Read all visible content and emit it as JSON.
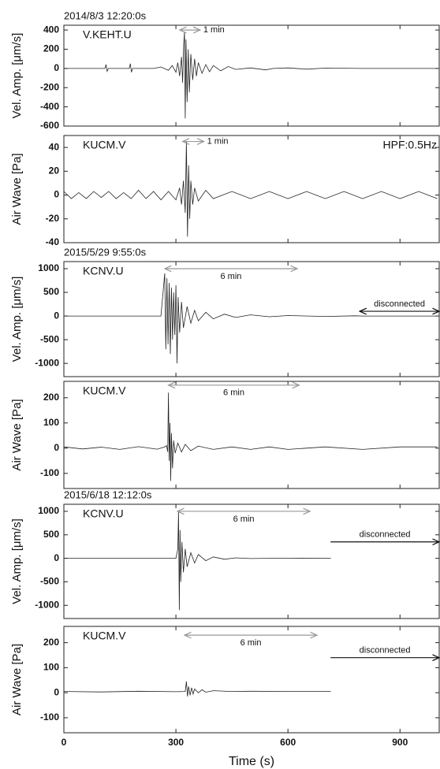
{
  "chart_data": [
    {
      "type": "line",
      "title": "2014/8/3 12:20:0s",
      "station": "V.KEHT.U",
      "ylabel": "Vel. Amp. [μm/s]",
      "xlim": [
        0,
        1005
      ],
      "xticks": [
        0,
        300,
        600,
        900
      ],
      "ylim": [
        -600,
        450
      ],
      "yticks": [
        -600,
        -400,
        -200,
        0,
        200,
        400
      ],
      "color": "#222222",
      "x": [
        0,
        110,
        113,
        116,
        119,
        175,
        178,
        181,
        184,
        240,
        260,
        280,
        290,
        300,
        305,
        310,
        315,
        318,
        321,
        323,
        325,
        327,
        330,
        333,
        336,
        340,
        345,
        350,
        355,
        360,
        370,
        380,
        390,
        400,
        420,
        440,
        460,
        500,
        540,
        560,
        600,
        650,
        700,
        800,
        900,
        1000
      ],
      "values": [
        0,
        0,
        40,
        -30,
        0,
        0,
        50,
        -40,
        0,
        0,
        15,
        -20,
        30,
        -40,
        60,
        -80,
        120,
        -150,
        250,
        380,
        -520,
        300,
        -350,
        200,
        -250,
        150,
        -120,
        100,
        -80,
        60,
        -50,
        40,
        -35,
        30,
        -25,
        20,
        -10,
        5,
        -15,
        0,
        5,
        -8,
        4,
        0,
        0,
        0
      ],
      "annotations": [
        {
          "text": "1 min",
          "x": [
            310,
            365
          ],
          "y": 400,
          "heads": "both",
          "label_pos": "right",
          "color": "#999999"
        }
      ]
    },
    {
      "type": "line",
      "station": "KUCM.V",
      "ylabel": "Air Wave [Pa]",
      "filter": "HPF:0.5Hz",
      "xlim": [
        0,
        1005
      ],
      "xticks": [
        0,
        300,
        600,
        900
      ],
      "ylim": [
        -40,
        50
      ],
      "yticks": [
        -40,
        -20,
        0,
        20,
        40
      ],
      "color": "#222222",
      "x": [
        0,
        20,
        40,
        60,
        80,
        100,
        120,
        140,
        160,
        180,
        200,
        220,
        240,
        260,
        280,
        300,
        310,
        315,
        320,
        325,
        328,
        331,
        334,
        337,
        340,
        345,
        350,
        360,
        380,
        400,
        450,
        500,
        550,
        600,
        650,
        700,
        750,
        800,
        850,
        900,
        950,
        1000
      ],
      "values": [
        3,
        -3,
        2,
        -3,
        3,
        -2,
        3,
        -3,
        2,
        -3,
        4,
        -3,
        3,
        -4,
        3,
        -4,
        6,
        -8,
        12,
        -15,
        45,
        -35,
        25,
        -20,
        12,
        -8,
        6,
        -5,
        4,
        -3,
        3,
        -3,
        3,
        -3,
        3,
        -3,
        3,
        -3,
        3,
        -3,
        3,
        -3
      ],
      "annotations": [
        {
          "text": "1 min",
          "x": [
            318,
            375
          ],
          "y": 45,
          "heads": "both",
          "label_pos": "right",
          "color": "#999999"
        }
      ]
    },
    {
      "type": "line",
      "title": "2015/5/29 9:55:0s",
      "station": "KCNV.U",
      "ylabel": "Vel. Amp. [μm/s]",
      "xlim": [
        0,
        1005
      ],
      "xticks": [
        0,
        300,
        600,
        900
      ],
      "ylim": [
        -1280,
        1150
      ],
      "yticks": [
        -1000,
        -500,
        0,
        500,
        1000
      ],
      "color": "#222222",
      "x": [
        0,
        260,
        270,
        273,
        276,
        279,
        282,
        285,
        288,
        291,
        294,
        297,
        300,
        303,
        306,
        310,
        315,
        320,
        330,
        340,
        350,
        360,
        380,
        400,
        430,
        460,
        500,
        550,
        600,
        700,
        780,
        800,
        1000
      ],
      "values": [
        0,
        0,
        900,
        -700,
        800,
        -600,
        700,
        -800,
        600,
        -500,
        500,
        -400,
        650,
        -1000,
        400,
        -350,
        300,
        -250,
        200,
        -150,
        120,
        -100,
        80,
        -60,
        40,
        -30,
        25,
        -15,
        10,
        -8,
        5,
        0,
        0
      ],
      "annotations": [
        {
          "text": "6 min",
          "x": [
            270,
            625
          ],
          "y": 1000,
          "heads": "both",
          "label_pos": "below",
          "color": "#999999"
        },
        {
          "text": "disconnected",
          "x": [
            792,
            1005
          ],
          "y": 100,
          "heads": "both",
          "label_pos": "above",
          "color": "#111111"
        }
      ]
    },
    {
      "type": "line",
      "station": "KUCM.V",
      "ylabel": "Air Wave [Pa]",
      "xlim": [
        0,
        1005
      ],
      "xticks": [
        0,
        300,
        600,
        900
      ],
      "ylim": [
        -160,
        265
      ],
      "yticks": [
        -100,
        0,
        100,
        200
      ],
      "color": "#222222",
      "x": [
        0,
        50,
        100,
        150,
        200,
        250,
        270,
        275,
        278,
        280,
        282,
        284,
        286,
        288,
        291,
        294,
        298,
        305,
        315,
        325,
        340,
        360,
        400,
        450,
        500,
        550,
        600,
        700,
        800,
        900,
        1000
      ],
      "values": [
        5,
        -3,
        4,
        -5,
        6,
        -4,
        5,
        10,
        -15,
        220,
        -50,
        100,
        -130,
        60,
        -80,
        30,
        -20,
        20,
        -15,
        15,
        -10,
        8,
        -5,
        5,
        -5,
        5,
        -5,
        5,
        -5,
        5,
        5
      ],
      "annotations": [
        {
          "text": "6 min",
          "x": [
            280,
            630
          ],
          "y": 250,
          "heads": "both",
          "label_pos": "below",
          "color": "#999999"
        }
      ]
    },
    {
      "type": "line",
      "title": "2015/6/18 12:12:0s",
      "station": "KCNV.U",
      "ylabel": "Vel. Amp. [μm/s]",
      "xlim": [
        0,
        1005
      ],
      "xticks": [
        0,
        300,
        600,
        900
      ],
      "ylim": [
        -1280,
        1150
      ],
      "yticks": [
        -1000,
        -500,
        0,
        500,
        1000
      ],
      "color": "#222222",
      "x": [
        0,
        300,
        305,
        307,
        309,
        311,
        313,
        316,
        320,
        325,
        330,
        340,
        350,
        360,
        380,
        400,
        430,
        460,
        500,
        600,
        715
      ],
      "values": [
        0,
        0,
        200,
        1000,
        -1100,
        600,
        -500,
        350,
        -300,
        200,
        -180,
        120,
        -100,
        80,
        -50,
        30,
        -20,
        10,
        -5,
        3,
        0
      ],
      "annotations": [
        {
          "text": "6 min",
          "x": [
            304,
            659
          ],
          "y": 1000,
          "heads": "both",
          "label_pos": "below",
          "color": "#999999"
        },
        {
          "text": "disconnected",
          "x": [
            714,
            1005
          ],
          "y": 350,
          "heads": "end",
          "label_pos": "above",
          "color": "#111111"
        }
      ]
    },
    {
      "type": "line",
      "station": "KUCM.V",
      "ylabel": "Air Wave [Pa]",
      "xlabel": "Time (s)",
      "xlim": [
        0,
        1005
      ],
      "xticks": [
        0,
        300,
        600,
        900
      ],
      "ylim": [
        -160,
        265
      ],
      "yticks": [
        -100,
        0,
        100,
        200
      ],
      "color": "#222222",
      "x": [
        0,
        100,
        200,
        300,
        325,
        328,
        331,
        334,
        338,
        342,
        346,
        350,
        360,
        370,
        380,
        400,
        450,
        500,
        600,
        715
      ],
      "values": [
        5,
        3,
        6,
        4,
        5,
        45,
        -15,
        25,
        -10,
        20,
        -5,
        15,
        0,
        12,
        2,
        8,
        5,
        6,
        5,
        5
      ],
      "annotations": [
        {
          "text": "6 min",
          "x": [
            323,
            678
          ],
          "y": 230,
          "heads": "both",
          "label_pos": "below",
          "color": "#999999"
        },
        {
          "text": "disconnected",
          "x": [
            714,
            1005
          ],
          "y": 140,
          "heads": "end",
          "label_pos": "above",
          "color": "#111111"
        }
      ]
    }
  ]
}
